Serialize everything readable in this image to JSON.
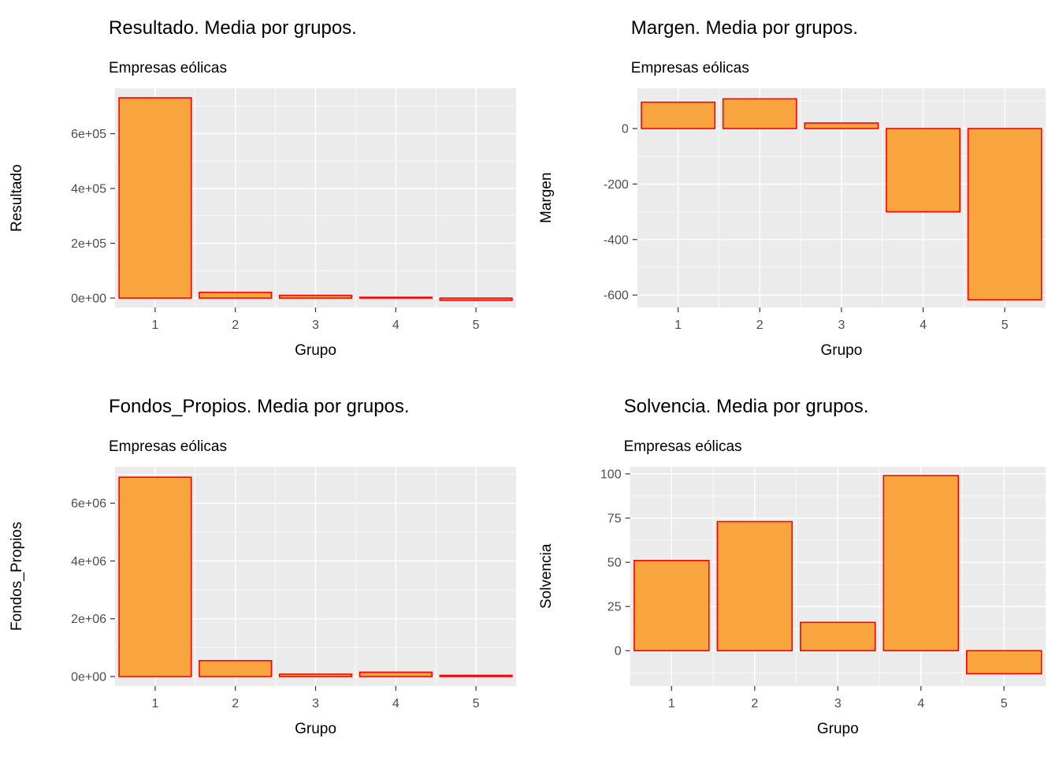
{
  "colors": {
    "background": "#FFFFFF",
    "panel_bg": "#EBEBEB",
    "grid_major": "#FFFFFF",
    "grid_minor": "#FFFFFF",
    "bar_fill": "#F9A53F",
    "bar_border": "#FF0000",
    "axis_tick": "#333333",
    "tick_label": "#4D4D4D",
    "title_text": "#000000"
  },
  "chart_data": [
    {
      "type": "bar",
      "title": "Resultado. Media por grupos.",
      "subtitle": "Empresas eólicas",
      "xlabel": "Grupo",
      "ylabel": "Resultado",
      "categories": [
        "1",
        "2",
        "3",
        "4",
        "5"
      ],
      "values": [
        731000,
        21000,
        10000,
        3000,
        -8000
      ],
      "ylim": [
        -34500,
        765500
      ],
      "ytick_values": [
        0,
        200000,
        400000,
        600000
      ],
      "ytick_labels": [
        "0e+00",
        "2e+05",
        "4e+05",
        "6e+05"
      ],
      "grid": true,
      "legend": "none"
    },
    {
      "type": "bar",
      "title": "Margen. Media por grupos.",
      "subtitle": "Empresas eólicas",
      "xlabel": "Grupo",
      "ylabel": "Margen",
      "categories": [
        "1",
        "2",
        "3",
        "4",
        "5"
      ],
      "values": [
        95,
        107,
        20,
        -300,
        -617
      ],
      "ylim": [
        -645,
        145
      ],
      "ytick_values": [
        0,
        -200,
        -400,
        -600
      ],
      "ytick_labels": [
        "0",
        "-200",
        "-400",
        "-600"
      ],
      "grid": true,
      "legend": "none"
    },
    {
      "type": "bar",
      "title": "Fondos_Propios. Media por grupos.",
      "subtitle": "Empresas eólicas",
      "xlabel": "Grupo",
      "ylabel": "Fondos_Propios",
      "categories": [
        "1",
        "2",
        "3",
        "4",
        "5"
      ],
      "values": [
        6900000,
        550000,
        80000,
        150000,
        40000
      ],
      "ylim": [
        -330000,
        7260000
      ],
      "ytick_values": [
        0,
        2000000,
        4000000,
        6000000
      ],
      "ytick_labels": [
        "0e+00",
        "2e+06",
        "4e+06",
        "6e+06"
      ],
      "grid": true,
      "legend": "none"
    },
    {
      "type": "bar",
      "title": "Solvencia. Media por grupos.",
      "subtitle": "Empresas eólicas",
      "xlabel": "Grupo",
      "ylabel": "Solvencia",
      "categories": [
        "1",
        "2",
        "3",
        "4",
        "5"
      ],
      "values": [
        51,
        73,
        16,
        99,
        -13
      ],
      "ylim": [
        -20,
        104
      ],
      "ytick_values": [
        0,
        25,
        50,
        75,
        100
      ],
      "ytick_labels": [
        "0",
        "25",
        "50",
        "75",
        "100"
      ],
      "grid": true,
      "legend": "none"
    }
  ]
}
